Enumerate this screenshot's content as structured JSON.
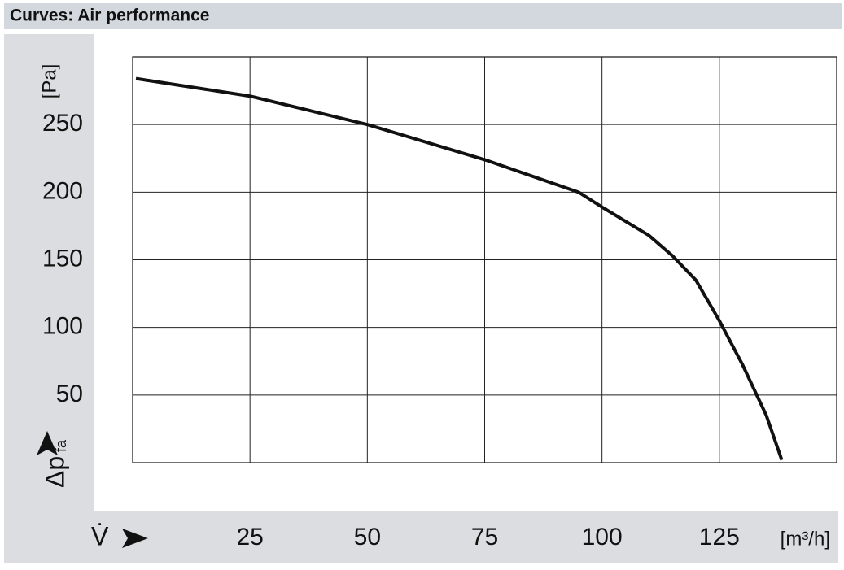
{
  "chart_data": {
    "type": "line",
    "title": "Curves: Air performance",
    "x_label": "V̇",
    "x_unit": "[m³/h]",
    "y_label": "Δp",
    "y_label_sub": "fa",
    "y_unit": "[Pa]",
    "xlim": [
      0,
      150
    ],
    "xticks": [
      25,
      50,
      75,
      100,
      125
    ],
    "ylim": [
      0,
      300
    ],
    "yticks": [
      50,
      100,
      150,
      200,
      250
    ],
    "grid": true,
    "series": [
      {
        "color": "#111111",
        "x": [
          0.7,
          25,
          50,
          75,
          95,
          100,
          110,
          115,
          120,
          125,
          130,
          135,
          138.3
        ],
        "values": [
          284,
          271,
          250,
          224,
          200,
          189,
          168,
          153,
          135,
          105,
          72,
          35,
          2
        ]
      }
    ]
  }
}
